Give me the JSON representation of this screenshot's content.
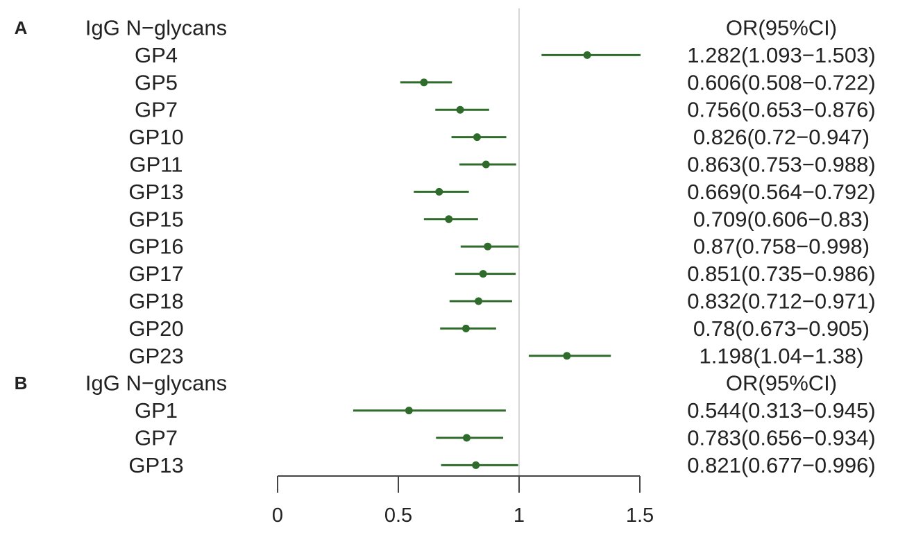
{
  "chart_data": {
    "type": "forest",
    "x_axis": {
      "range": [
        0,
        1.5
      ],
      "ticks": [
        0,
        0.5,
        1,
        1.5
      ],
      "tick_labels": [
        "0",
        "0.5",
        "1",
        "1.5"
      ],
      "reference_line": 1
    },
    "colors": {
      "marker": "#2f6b2a",
      "reference_line": "#c8c8c8",
      "axis": "#444444",
      "text": "#222222"
    },
    "panels": [
      {
        "letter": "A",
        "header_left": "IgG N−glycans",
        "header_right": "OR(95%CI)",
        "rows": [
          {
            "label": "GP4",
            "or": 1.282,
            "lo": 1.093,
            "hi": 1.503,
            "text": "1.282(1.093−1.503)"
          },
          {
            "label": "GP5",
            "or": 0.606,
            "lo": 0.508,
            "hi": 0.722,
            "text": "0.606(0.508−0.722)"
          },
          {
            "label": "GP7",
            "or": 0.756,
            "lo": 0.653,
            "hi": 0.876,
            "text": "0.756(0.653−0.876)"
          },
          {
            "label": "GP10",
            "or": 0.826,
            "lo": 0.72,
            "hi": 0.947,
            "text": "0.826(0.72−0.947)"
          },
          {
            "label": "GP11",
            "or": 0.863,
            "lo": 0.753,
            "hi": 0.988,
            "text": "0.863(0.753−0.988)"
          },
          {
            "label": "GP13",
            "or": 0.669,
            "lo": 0.564,
            "hi": 0.792,
            "text": "0.669(0.564−0.792)"
          },
          {
            "label": "GP15",
            "or": 0.709,
            "lo": 0.606,
            "hi": 0.83,
            "text": "0.709(0.606−0.83)"
          },
          {
            "label": "GP16",
            "or": 0.87,
            "lo": 0.758,
            "hi": 0.998,
            "text": "0.87(0.758−0.998)"
          },
          {
            "label": "GP17",
            "or": 0.851,
            "lo": 0.735,
            "hi": 0.986,
            "text": "0.851(0.735−0.986)"
          },
          {
            "label": "GP18",
            "or": 0.832,
            "lo": 0.712,
            "hi": 0.971,
            "text": "0.832(0.712−0.971)"
          },
          {
            "label": "GP20",
            "or": 0.78,
            "lo": 0.673,
            "hi": 0.905,
            "text": "0.78(0.673−0.905)"
          },
          {
            "label": "GP23",
            "or": 1.198,
            "lo": 1.04,
            "hi": 1.38,
            "text": "1.198(1.04−1.38)"
          }
        ]
      },
      {
        "letter": "B",
        "header_left": "IgG N−glycans",
        "header_right": "OR(95%CI)",
        "rows": [
          {
            "label": "GP1",
            "or": 0.544,
            "lo": 0.313,
            "hi": 0.945,
            "text": "0.544(0.313−0.945)"
          },
          {
            "label": "GP7",
            "or": 0.783,
            "lo": 0.656,
            "hi": 0.934,
            "text": "0.783(0.656−0.934)"
          },
          {
            "label": "GP13",
            "or": 0.821,
            "lo": 0.677,
            "hi": 0.996,
            "text": "0.821(0.677−0.996)"
          }
        ]
      }
    ]
  }
}
